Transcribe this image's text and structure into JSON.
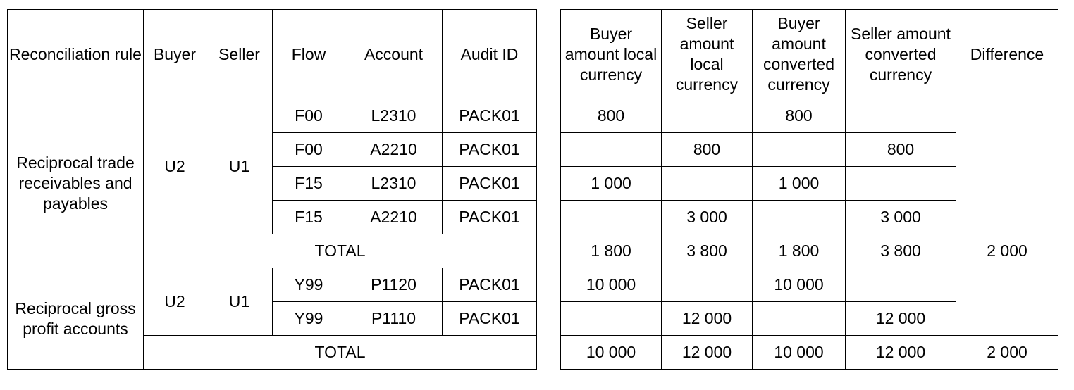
{
  "left": {
    "headers": [
      "Reconciliation rule",
      "Buyer",
      "Seller",
      "Flow",
      "Account",
      "Audit ID"
    ],
    "groups": [
      {
        "rule": "Reciprocal trade receivables and payables",
        "buyer": "U2",
        "seller": "U1",
        "rows": [
          {
            "flow": "F00",
            "account": "L2310",
            "audit": "PACK01"
          },
          {
            "flow": "F00",
            "account": "A2210",
            "audit": "PACK01"
          },
          {
            "flow": "F15",
            "account": "L2310",
            "audit": "PACK01"
          },
          {
            "flow": "F15",
            "account": "A2210",
            "audit": "PACK01"
          }
        ],
        "total_label": "TOTAL"
      },
      {
        "rule": "Reciprocal gross profit accounts",
        "buyer": "U2",
        "seller": "U1",
        "rows": [
          {
            "flow": "Y99",
            "account": "P1120",
            "audit": "PACK01"
          },
          {
            "flow": "Y99",
            "account": "P1110",
            "audit": "PACK01"
          }
        ],
        "total_label": "TOTAL"
      }
    ]
  },
  "right": {
    "headers": [
      "Buyer amount local currency",
      "Seller amount local currency",
      "Buyer amount converted currency",
      "Seller amount converted currency",
      "Difference"
    ],
    "groups": [
      {
        "rows": [
          [
            "800",
            "",
            "800",
            ""
          ],
          [
            "",
            "800",
            "",
            "800"
          ],
          [
            "1 000",
            "",
            "1 000",
            ""
          ],
          [
            "",
            "3 000",
            "",
            "3 000"
          ]
        ],
        "total": [
          "1 800",
          "3 800",
          "1 800",
          "3 800",
          "2 000"
        ]
      },
      {
        "rows": [
          [
            "10 000",
            "",
            "10 000",
            ""
          ],
          [
            "",
            "12 000",
            "",
            "12 000"
          ]
        ],
        "total": [
          "10 000",
          "12 000",
          "10 000",
          "12 000",
          "2 000"
        ]
      }
    ]
  }
}
